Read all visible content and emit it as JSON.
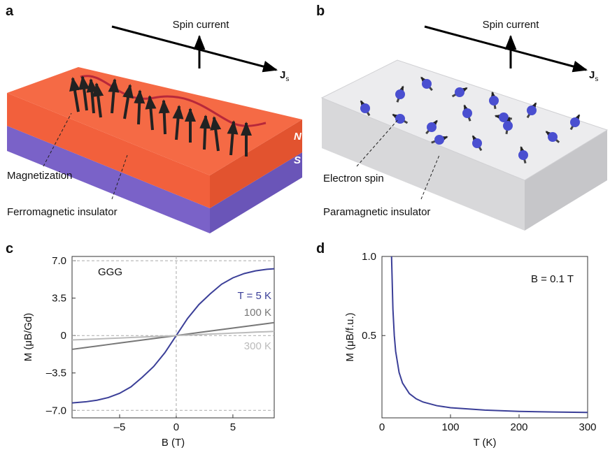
{
  "panel_a": {
    "label": "a",
    "arrow_label": "Spin current",
    "flow": "J",
    "flow_sub": "s",
    "top_layer": "N",
    "bottom_layer": "S",
    "pointer_1": "Magnetization",
    "pointer_2": "Ferromagnetic insulator"
  },
  "panel_b": {
    "label": "b",
    "arrow_label": "Spin current",
    "flow": "J",
    "flow_sub": "s",
    "pointer_1": "Electron spin",
    "pointer_2": "Paramagnetic insulator"
  },
  "chart_data": [
    {
      "type": "line",
      "panel": "c",
      "annotation": "GGG",
      "xlabel": "B (T)",
      "ylabel": "M (μB/Gd)",
      "x": [
        -9.2,
        -8,
        -7,
        -6,
        -5,
        -4,
        -3,
        -2,
        -1,
        0,
        1,
        2,
        3,
        4,
        5,
        6,
        7,
        8,
        8.65
      ],
      "series": [
        {
          "name": "T = 5 K",
          "color": "#3b3f98",
          "values": [
            -6.3,
            -6.2,
            -6.05,
            -5.8,
            -5.4,
            -4.8,
            -3.9,
            -2.9,
            -1.6,
            0,
            1.6,
            2.9,
            3.9,
            4.8,
            5.4,
            5.8,
            6.05,
            6.2,
            6.25
          ]
        },
        {
          "name": "100 K",
          "color": "#777777",
          "values": [
            -1.29,
            -1.12,
            -0.98,
            -0.84,
            -0.7,
            -0.56,
            -0.42,
            -0.28,
            -0.14,
            0,
            0.14,
            0.28,
            0.42,
            0.56,
            0.7,
            0.84,
            0.98,
            1.12,
            1.21
          ]
        },
        {
          "name": "300 K",
          "color": "#bbbbbb",
          "values": [
            -0.41,
            -0.36,
            -0.32,
            -0.27,
            -0.23,
            -0.18,
            -0.14,
            -0.09,
            -0.05,
            0,
            0.05,
            0.09,
            0.14,
            0.18,
            0.23,
            0.27,
            0.32,
            0.36,
            0.39
          ]
        }
      ],
      "xlim": [
        -9.2,
        8.65
      ],
      "xticks": [
        {
          "value": -5,
          "label": "–5"
        },
        0,
        5
      ],
      "ylim": [
        -7.7,
        7.4
      ],
      "yticks": [
        {
          "value": 7,
          "label": "7.0"
        },
        3.5,
        0,
        {
          "value": -3.5,
          "label": "–3.5"
        },
        {
          "value": -7,
          "label": "–7.0"
        }
      ]
    },
    {
      "type": "line",
      "panel": "d",
      "annotation": "B = 0.1 T",
      "xlabel": "T (K)",
      "ylabel": "M (μB/f.u.)",
      "x": [
        14,
        16,
        18,
        20,
        25,
        30,
        40,
        50,
        60,
        80,
        100,
        150,
        200,
        250,
        300
      ],
      "series": [
        {
          "color": "#3b3f98",
          "values": [
            1.0,
            0.667,
            0.5,
            0.4,
            0.267,
            0.2,
            0.133,
            0.1,
            0.08,
            0.057,
            0.044,
            0.029,
            0.021,
            0.017,
            0.014
          ]
        }
      ],
      "xlim": [
        0,
        300
      ],
      "xticks": [
        0,
        100,
        200,
        300
      ],
      "ylim": [
        -0.02,
        1.0
      ],
      "yticks": [
        {
          "value": 1,
          "label": "1.0"
        },
        0.5
      ]
    }
  ]
}
